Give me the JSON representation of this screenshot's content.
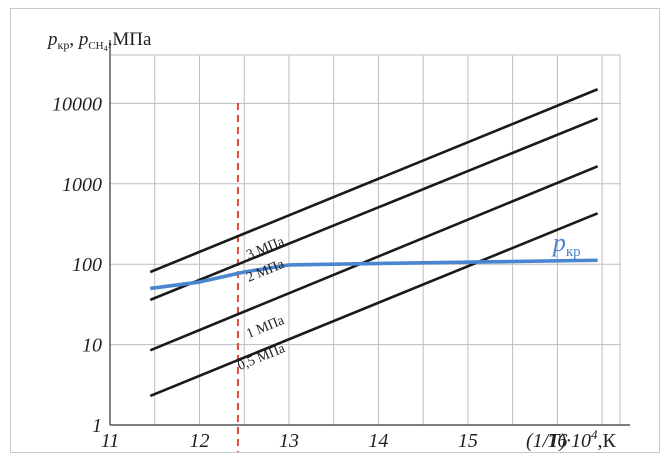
{
  "chart_data": {
    "type": "line",
    "yaxis": {
      "label": {
        "p": "p",
        "kr": "кр",
        "sep": ", ",
        "p2": "p",
        "ch4": "CH",
        "four": "4",
        "unit": ",МПа"
      },
      "scale": "log",
      "ylim": [
        1,
        40000
      ],
      "ticks": [
        1,
        10,
        100,
        1000,
        10000
      ],
      "tick_labels": [
        "1",
        "10",
        "100",
        "1000",
        "10000"
      ]
    },
    "xaxis": {
      "label": {
        "main": "(1/T)·10",
        "exp": "4",
        "unit": ",К"
      },
      "xlim": [
        11,
        16.7
      ],
      "ticks": [
        11,
        12,
        13,
        14,
        15,
        16
      ],
      "tick_labels": [
        "11",
        "12",
        "13",
        "14",
        "15",
        "16"
      ],
      "grid_step": 0.5
    },
    "grid": true,
    "marker_line": {
      "x": 12.43,
      "style": "dashed",
      "color": "#e0483a"
    },
    "series": [
      {
        "name": "3 МПа",
        "color": "#1a1a1a",
        "x": [
          11.45,
          16.45
        ],
        "y": [
          80,
          15000
        ]
      },
      {
        "name": "2 МПа",
        "color": "#1a1a1a",
        "x": [
          11.45,
          16.45
        ],
        "y": [
          36,
          6500
        ]
      },
      {
        "name": "1 МПа",
        "color": "#1a1a1a",
        "x": [
          11.45,
          16.45
        ],
        "y": [
          8.5,
          1650
        ]
      },
      {
        "name": "0,5 МПа",
        "color": "#1a1a1a",
        "x": [
          11.45,
          16.45
        ],
        "y": [
          2.3,
          430
        ]
      },
      {
        "name": "p_кр",
        "color": "#4a86d0",
        "x": [
          11.45,
          12.0,
          12.5,
          13.0,
          13.5,
          14.5,
          16.45
        ],
        "y": [
          50,
          60,
          80,
          98,
          100,
          104,
          112
        ]
      }
    ],
    "annotations": [
      {
        "text": "3 МПа",
        "x": 12.55,
        "y": 115
      },
      {
        "text": "2 МПа",
        "x": 12.55,
        "y": 60
      },
      {
        "text": "1 МПа",
        "x": 12.55,
        "y": 12
      },
      {
        "text": "0,5 МПа",
        "x": 12.45,
        "y": 4.8
      }
    ],
    "pkr_label": {
      "p": "p",
      "sub": "кр",
      "x": 15.95,
      "y": 145
    }
  }
}
